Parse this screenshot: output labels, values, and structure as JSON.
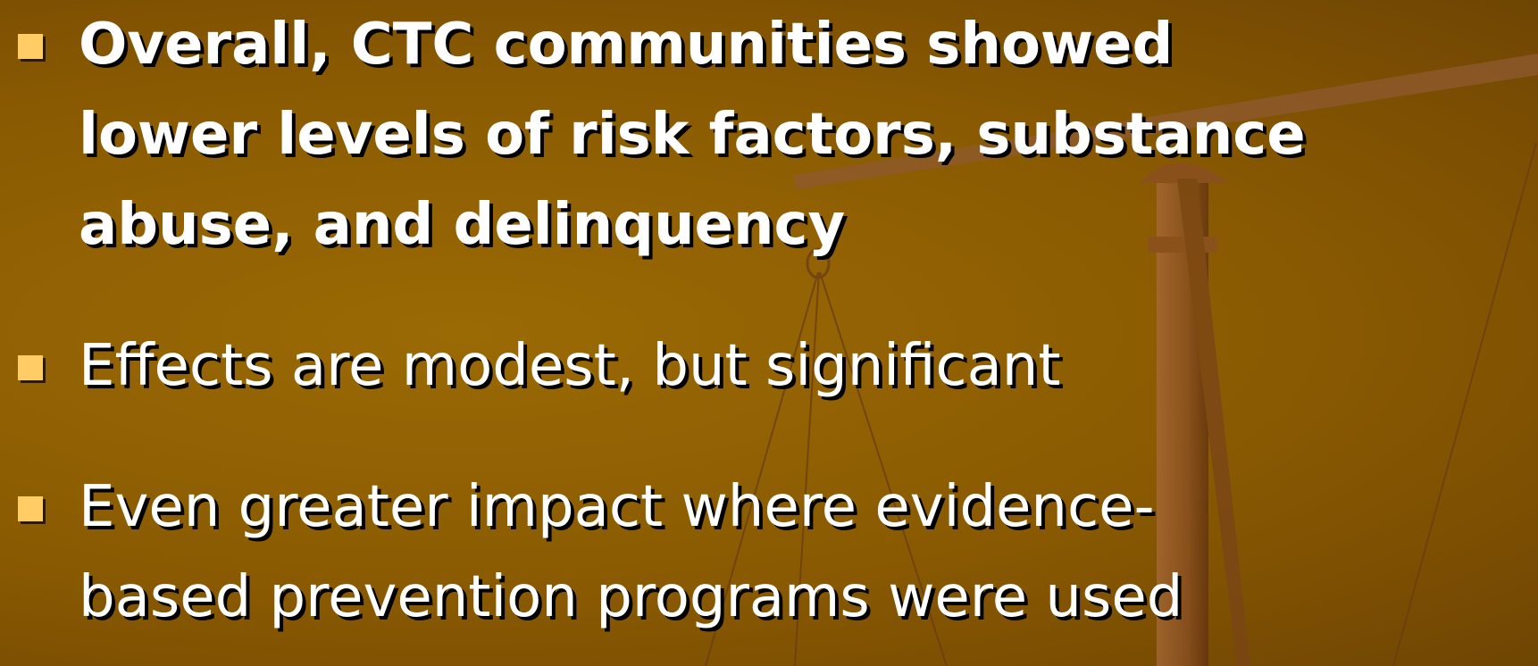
{
  "bullets": [
    {
      "lines": [
        "Overall, CTC communities showed",
        "lower levels of risk factors, substance",
        "abuse, and delinquency"
      ],
      "bold": true
    },
    {
      "lines": [
        "Effects are modest, but significant"
      ],
      "bold": false
    },
    {
      "lines": [
        "Even greater impact where evidence-",
        "based prevention programs were used"
      ],
      "bold": false
    }
  ]
}
